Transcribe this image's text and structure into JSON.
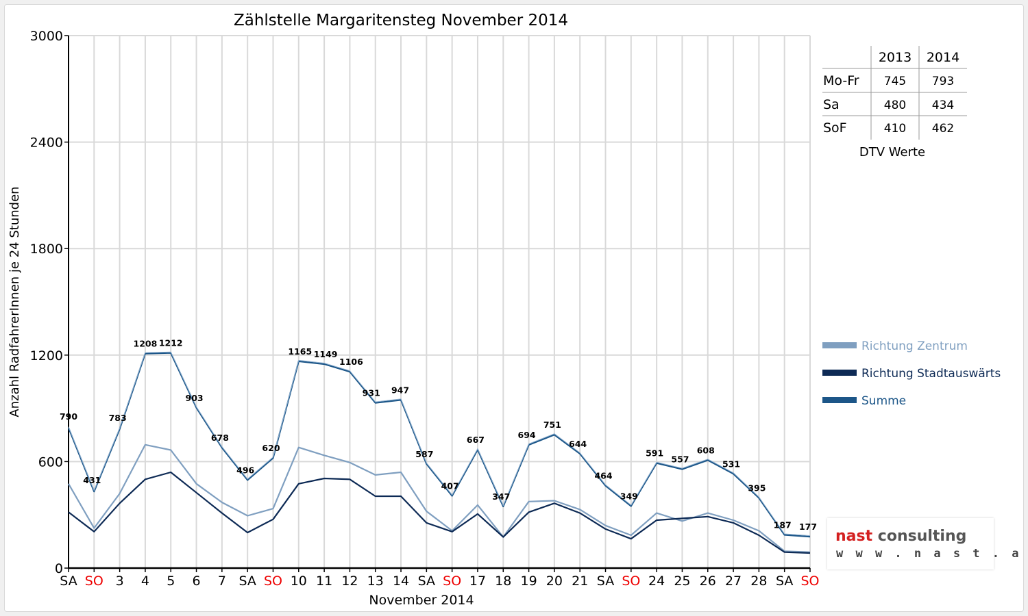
{
  "chart_data": {
    "type": "line",
    "title": "Zählstelle Margaritensteg November 2014",
    "xlabel": "November 2014",
    "ylabel": "Anzahl RadfahrerInnen je 24 Stunden",
    "ylim": [
      0,
      3000
    ],
    "yticks": [
      0,
      600,
      1200,
      1800,
      2400,
      3000
    ],
    "grid": "on",
    "legend_placement": "right",
    "categories": [
      "SA",
      "SO",
      "3",
      "4",
      "5",
      "6",
      "7",
      "SA",
      "SO",
      "10",
      "11",
      "12",
      "13",
      "14",
      "SA",
      "SO",
      "17",
      "18",
      "19",
      "20",
      "21",
      "SA",
      "SO",
      "24",
      "25",
      "26",
      "27",
      "28",
      "SA",
      "SO"
    ],
    "weekend_tick_color": {
      "SO": "#ee0000"
    },
    "series": [
      {
        "name": "Richtung Zentrum",
        "color": "#7f9fc0",
        "values": [
          475,
          225,
          420,
          695,
          665,
          475,
          370,
          295,
          335,
          680,
          635,
          595,
          525,
          540,
          320,
          210,
          355,
          175,
          375,
          380,
          330,
          240,
          185,
          310,
          265,
          310,
          270,
          210,
          95,
          90
        ]
      },
      {
        "name": "Richtung Stadtauswärts",
        "color": "#0d2a55",
        "values": [
          315,
          205,
          365,
          500,
          540,
          425,
          310,
          200,
          275,
          475,
          505,
          500,
          405,
          405,
          255,
          205,
          305,
          175,
          315,
          365,
          310,
          220,
          165,
          270,
          280,
          290,
          255,
          185,
          90,
          85
        ]
      },
      {
        "name": "Summe",
        "color": "#1c5688",
        "values": [
          790,
          431,
          783,
          1208,
          1212,
          903,
          678,
          496,
          620,
          1165,
          1149,
          1106,
          931,
          947,
          587,
          407,
          667,
          347,
          694,
          751,
          644,
          464,
          349,
          591,
          557,
          608,
          531,
          395,
          187,
          177
        ],
        "labels": [
          "790",
          "431",
          "783",
          "1208",
          "1212",
          "903",
          "678",
          "496",
          "620",
          "1165",
          "1149",
          "1106",
          "931",
          "947",
          "587",
          "407",
          "667",
          "347",
          "694",
          "751",
          "644",
          "464",
          "349",
          "591",
          "557",
          "608",
          "531",
          "395",
          "187",
          "177"
        ]
      }
    ]
  },
  "dtv_table": {
    "caption": "DTV Werte",
    "columns": [
      "",
      "2013",
      "2014"
    ],
    "rows": [
      {
        "label": "Mo-Fr",
        "v2013": "745",
        "v2014": "793"
      },
      {
        "label": "Sa",
        "v2013": "480",
        "v2014": "434"
      },
      {
        "label": "SoF",
        "v2013": "410",
        "v2014": "462"
      }
    ]
  },
  "logo": {
    "brand": "nast",
    "brand_rest": " consulting",
    "url": "w w w . n a s t . a t"
  }
}
